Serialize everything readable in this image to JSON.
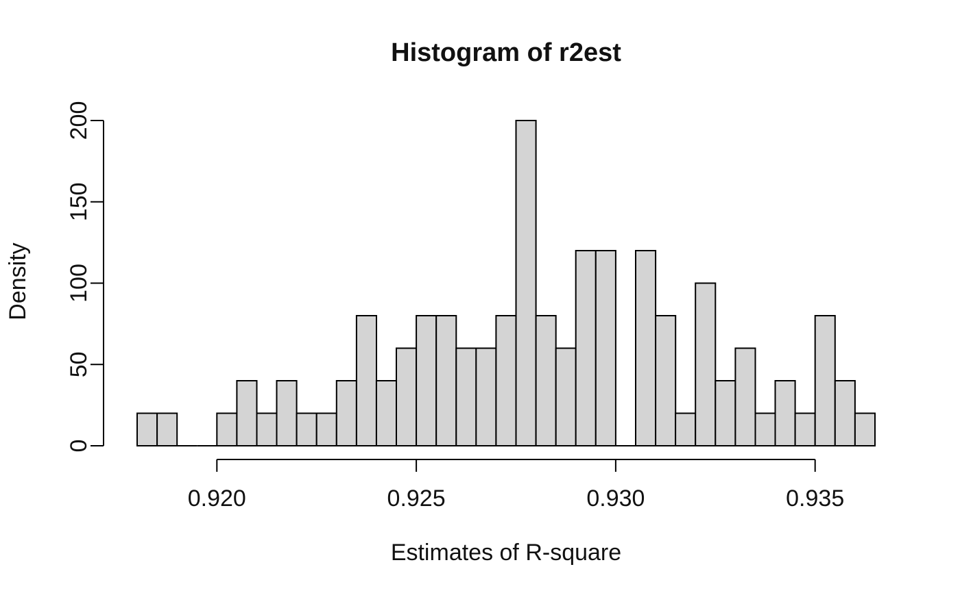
{
  "title": "Histogram of r2est",
  "chart_data": {
    "type": "bar",
    "subtype": "histogram",
    "title": "Histogram of r2est",
    "xlabel": "Estimates of R-square",
    "ylabel": "Density",
    "bin_start": 0.918,
    "bin_width": 0.0005,
    "densities": [
      20,
      20,
      0,
      0,
      20,
      40,
      20,
      40,
      20,
      20,
      40,
      80,
      40,
      60,
      80,
      80,
      60,
      60,
      80,
      200,
      80,
      60,
      120,
      120,
      0,
      120,
      80,
      20,
      100,
      40,
      60,
      20,
      40,
      20,
      80,
      40,
      20
    ],
    "x_range": [
      0.918,
      0.9365
    ],
    "ylim": [
      0,
      200
    ],
    "x_ticks": [
      0.92,
      0.925,
      0.93,
      0.935
    ],
    "x_tick_labels": [
      "0.920",
      "0.925",
      "0.930",
      "0.935"
    ],
    "y_ticks": [
      0,
      50,
      100,
      150,
      200
    ],
    "y_tick_labels": [
      "0",
      "50",
      "100",
      "150",
      "200"
    ],
    "grid": false,
    "legend_position": "none",
    "bar_fill": "#d4d4d4",
    "bar_stroke": "#000000",
    "axis_color": "#000000",
    "background": "#ffffff"
  }
}
